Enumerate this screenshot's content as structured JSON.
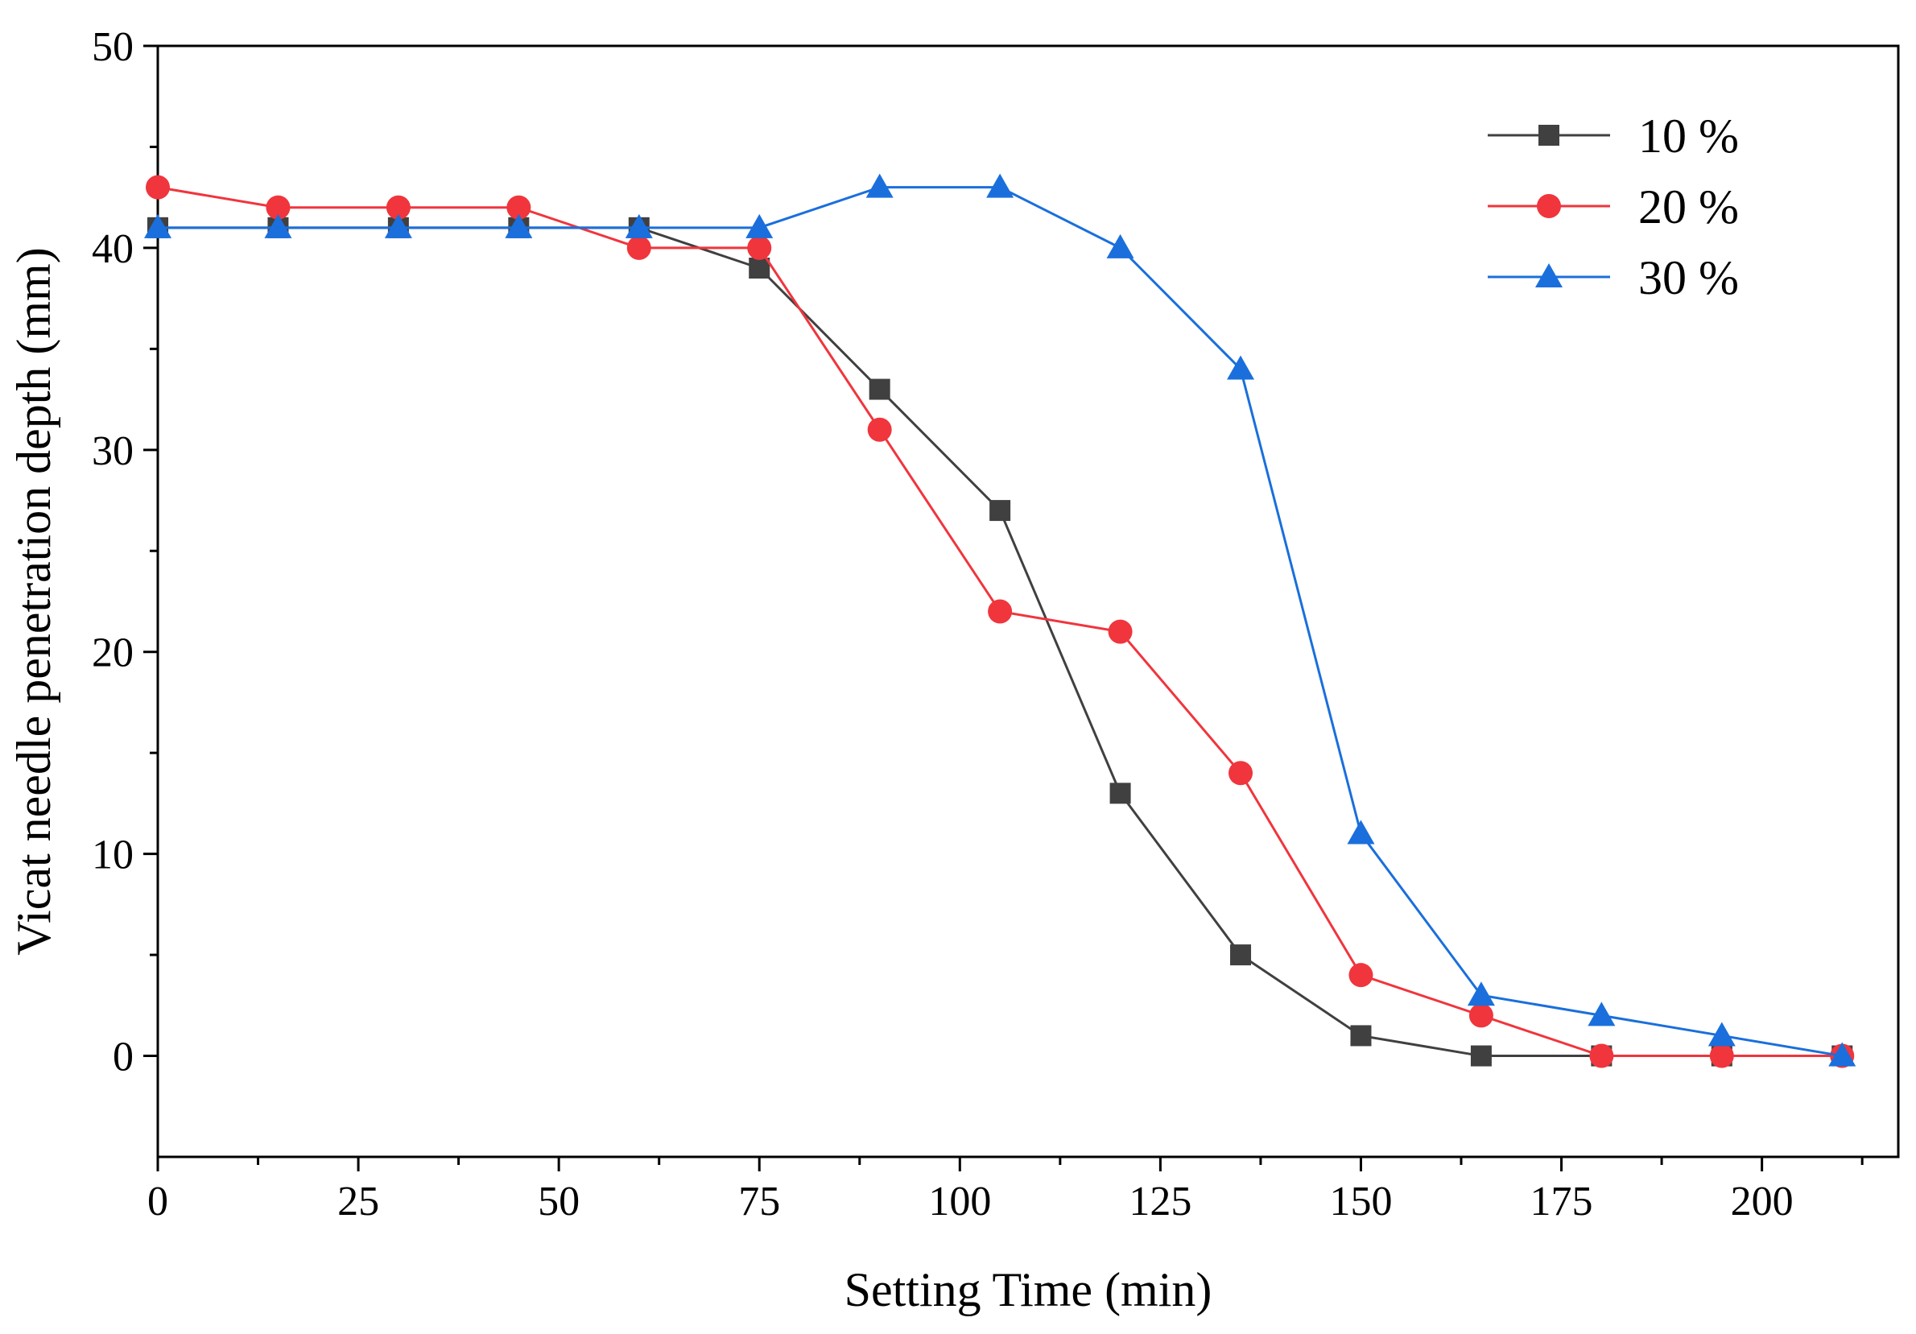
{
  "chart_data": {
    "type": "line",
    "title": "",
    "xlabel": "Setting Time (min)",
    "ylabel": "Vicat needle penetration depth (mm)",
    "xlim": [
      0,
      217
    ],
    "ylim": [
      -5,
      50
    ],
    "xticks": [
      0,
      25,
      50,
      75,
      100,
      125,
      150,
      175,
      200
    ],
    "xminor": [
      12.5,
      37.5,
      62.5,
      87.5,
      112.5,
      137.5,
      162.5,
      187.5,
      212.5
    ],
    "yticks": [
      0,
      10,
      20,
      30,
      40,
      50
    ],
    "yminor": [
      5,
      15,
      25,
      35,
      45
    ],
    "grid": false,
    "legend_position": "top-right",
    "x": [
      0,
      15,
      30,
      45,
      60,
      75,
      90,
      105,
      120,
      135,
      150,
      165,
      180,
      195,
      210
    ],
    "series": [
      {
        "name": "10 %",
        "color": "#404040",
        "marker": "square",
        "values": [
          41,
          41,
          41,
          41,
          41,
          39,
          33,
          27,
          13,
          5,
          1,
          0,
          0,
          0,
          0
        ]
      },
      {
        "name": "20 %",
        "color": "#f0353d",
        "marker": "circle",
        "values": [
          43,
          42,
          42,
          42,
          40,
          40,
          31,
          22,
          21,
          14,
          4,
          2,
          0,
          0,
          0
        ]
      },
      {
        "name": "30 %",
        "color": "#1a6fdc",
        "marker": "triangle",
        "values": [
          41,
          41,
          41,
          41,
          41,
          41,
          43,
          43,
          40,
          34,
          11,
          3,
          2,
          1,
          0
        ]
      }
    ]
  }
}
